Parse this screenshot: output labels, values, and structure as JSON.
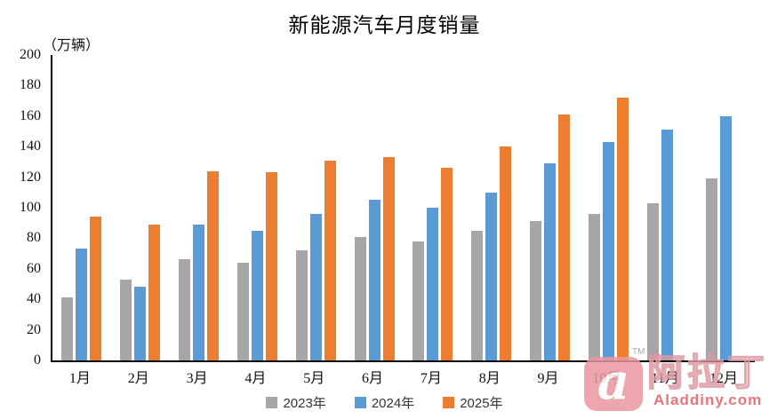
{
  "title": "新能源汽车月度销量",
  "unit_label": "（万辆）",
  "colors": {
    "axis": "#000000",
    "series_2023": "#A6A6A6",
    "series_2024": "#5B9BD5",
    "series_2025": "#ED7D31",
    "watermark_pink": "#EB97A0",
    "watermark_red": "#E25F63"
  },
  "watermark": {
    "tm": "TM",
    "logo_letter": "a",
    "brand_cn": "阿拉丁",
    "brand_en": "Aladdiny.com"
  },
  "chart_data": {
    "type": "bar",
    "title": "新能源汽车月度销量",
    "ylabel": "（万辆）",
    "xlabel": "",
    "categories": [
      "1月",
      "2月",
      "3月",
      "4月",
      "5月",
      "6月",
      "7月",
      "8月",
      "9月",
      "10月",
      "11月",
      "12月"
    ],
    "series": [
      {
        "name": "2023年",
        "color": "#A6A6A6",
        "values": [
          41,
          53,
          66,
          64,
          72,
          81,
          78,
          85,
          91,
          96,
          103,
          119
        ]
      },
      {
        "name": "2024年",
        "color": "#5B9BD5",
        "values": [
          73,
          48,
          89,
          85,
          96,
          105,
          100,
          110,
          129,
          143,
          151,
          160
        ]
      },
      {
        "name": "2025年",
        "color": "#ED7D31",
        "values": [
          94,
          89,
          124,
          123,
          131,
          133,
          126,
          140,
          161,
          172,
          null,
          null
        ]
      }
    ],
    "ylim": [
      0,
      200
    ],
    "ytick_step": 20,
    "grid": false,
    "legend_position": "bottom"
  }
}
